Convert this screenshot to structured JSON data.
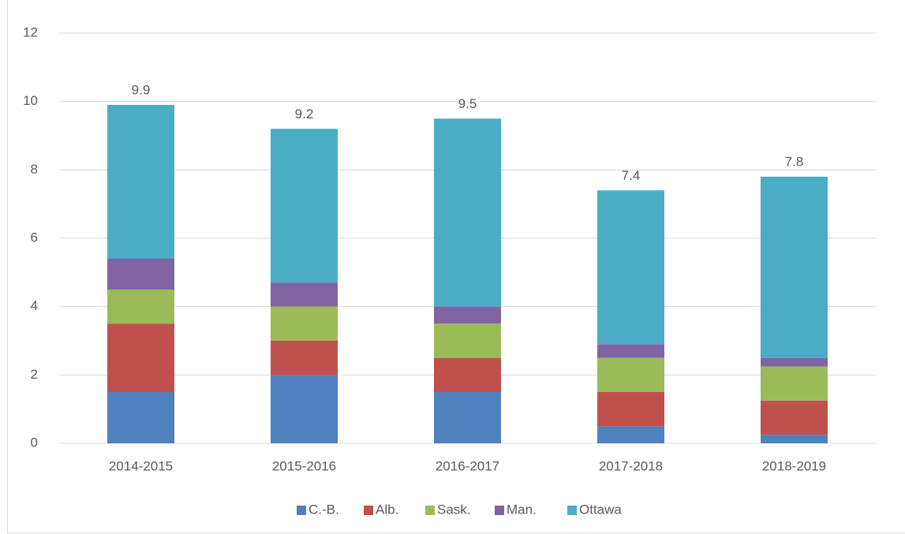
{
  "chart_data": {
    "type": "stacked_bar",
    "categories": [
      "2014-2015",
      "2015-2016",
      "2016-2017",
      "2017-2018",
      "2018-2019"
    ],
    "series": [
      {
        "name": "C.-B.",
        "color": "#4f81bd",
        "values": [
          1.5,
          2.0,
          1.5,
          0.5,
          0.25
        ]
      },
      {
        "name": "Alb.",
        "color": "#c0504d",
        "values": [
          2.0,
          1.0,
          1.0,
          1.0,
          1.0
        ]
      },
      {
        "name": "Sask.",
        "color": "#9bbb59",
        "values": [
          1.0,
          1.0,
          1.0,
          1.0,
          1.0
        ]
      },
      {
        "name": "Man.",
        "color": "#8064a2",
        "values": [
          0.9,
          0.7,
          0.5,
          0.4,
          0.25
        ]
      },
      {
        "name": "Ottawa",
        "color": "#4bacc6",
        "values": [
          4.5,
          4.5,
          5.5,
          4.5,
          5.3
        ]
      }
    ],
    "totals": [
      9.9,
      9.2,
      9.5,
      7.4,
      7.8
    ],
    "ylim": [
      0,
      12
    ],
    "yticks": [
      0,
      2,
      4,
      6,
      8,
      10,
      12
    ],
    "grid": true,
    "legend": "bottom"
  }
}
